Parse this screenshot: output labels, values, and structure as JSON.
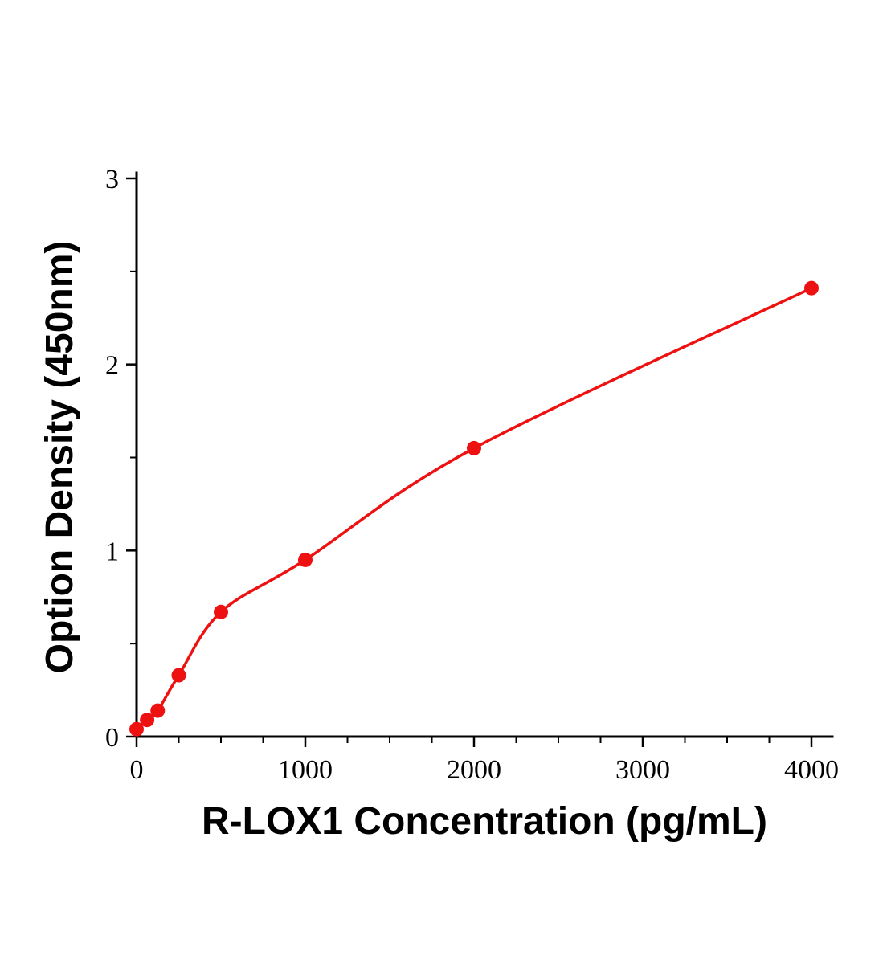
{
  "chart_data": {
    "type": "scatter",
    "title": "",
    "xlabel": "R-LOX1 Concentration (pg/mL)",
    "ylabel": "Option Density (450nm)",
    "x": [
      0,
      62.5,
      125,
      250,
      500,
      1000,
      2000,
      4000
    ],
    "y": [
      0.04,
      0.09,
      0.14,
      0.33,
      0.67,
      0.95,
      1.55,
      2.41
    ],
    "xlim": [
      0,
      4000
    ],
    "ylim": [
      0,
      3
    ],
    "xticks": [
      0,
      1000,
      2000,
      3000,
      4000
    ],
    "yticks": [
      0,
      1,
      2,
      3
    ],
    "x_minor_step": 250,
    "y_minor_step": 0.5,
    "curve_color": "#ee1111",
    "axis_color": "#000000",
    "marker_radius": 9,
    "line_width": 3.5,
    "grid": false,
    "legend": null
  }
}
